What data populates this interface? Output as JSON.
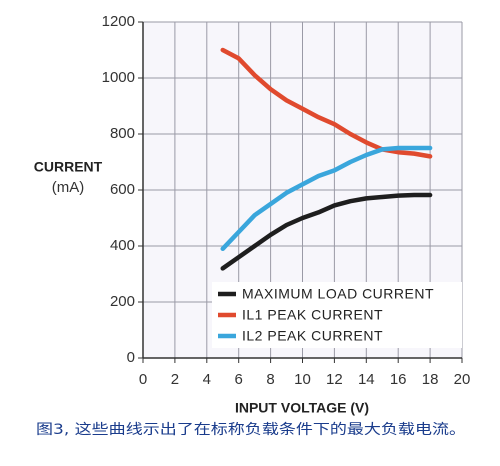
{
  "chart_data": {
    "type": "line",
    "xlabel": "INPUT VOLTAGE (V)",
    "ylabel": "CURRENT",
    "ylabel_unit": "(mA)",
    "caption": "图3, 这些曲线示出了在标称负载条件下的最大负载电流。",
    "x": [
      5,
      6,
      7,
      8,
      9,
      10,
      11,
      12,
      13,
      14,
      15,
      16,
      17,
      18
    ],
    "series": [
      {
        "name": "MAXIMUM LOAD CURRENT",
        "color": "#1e1e1e",
        "values": [
          320,
          360,
          400,
          440,
          475,
          500,
          520,
          545,
          560,
          570,
          575,
          580,
          582,
          582
        ]
      },
      {
        "name": "IL1 PEAK CURRENT",
        "color": "#e04a2e",
        "values": [
          1100,
          1070,
          1010,
          960,
          920,
          890,
          860,
          835,
          800,
          770,
          745,
          735,
          730,
          720
        ]
      },
      {
        "name": "IL2 PEAK CURRENT",
        "color": "#3aa6dc",
        "values": [
          390,
          450,
          510,
          550,
          590,
          620,
          650,
          670,
          700,
          725,
          745,
          750,
          750,
          750
        ]
      }
    ],
    "xlim": [
      0,
      20
    ],
    "xticks": [
      0,
      2,
      4,
      6,
      8,
      10,
      12,
      14,
      16,
      18,
      20
    ],
    "ylim": [
      0,
      1200
    ],
    "yticks": [
      0,
      200,
      400,
      600,
      800,
      1000,
      1200
    ],
    "grid": true,
    "legend": "lower right"
  }
}
